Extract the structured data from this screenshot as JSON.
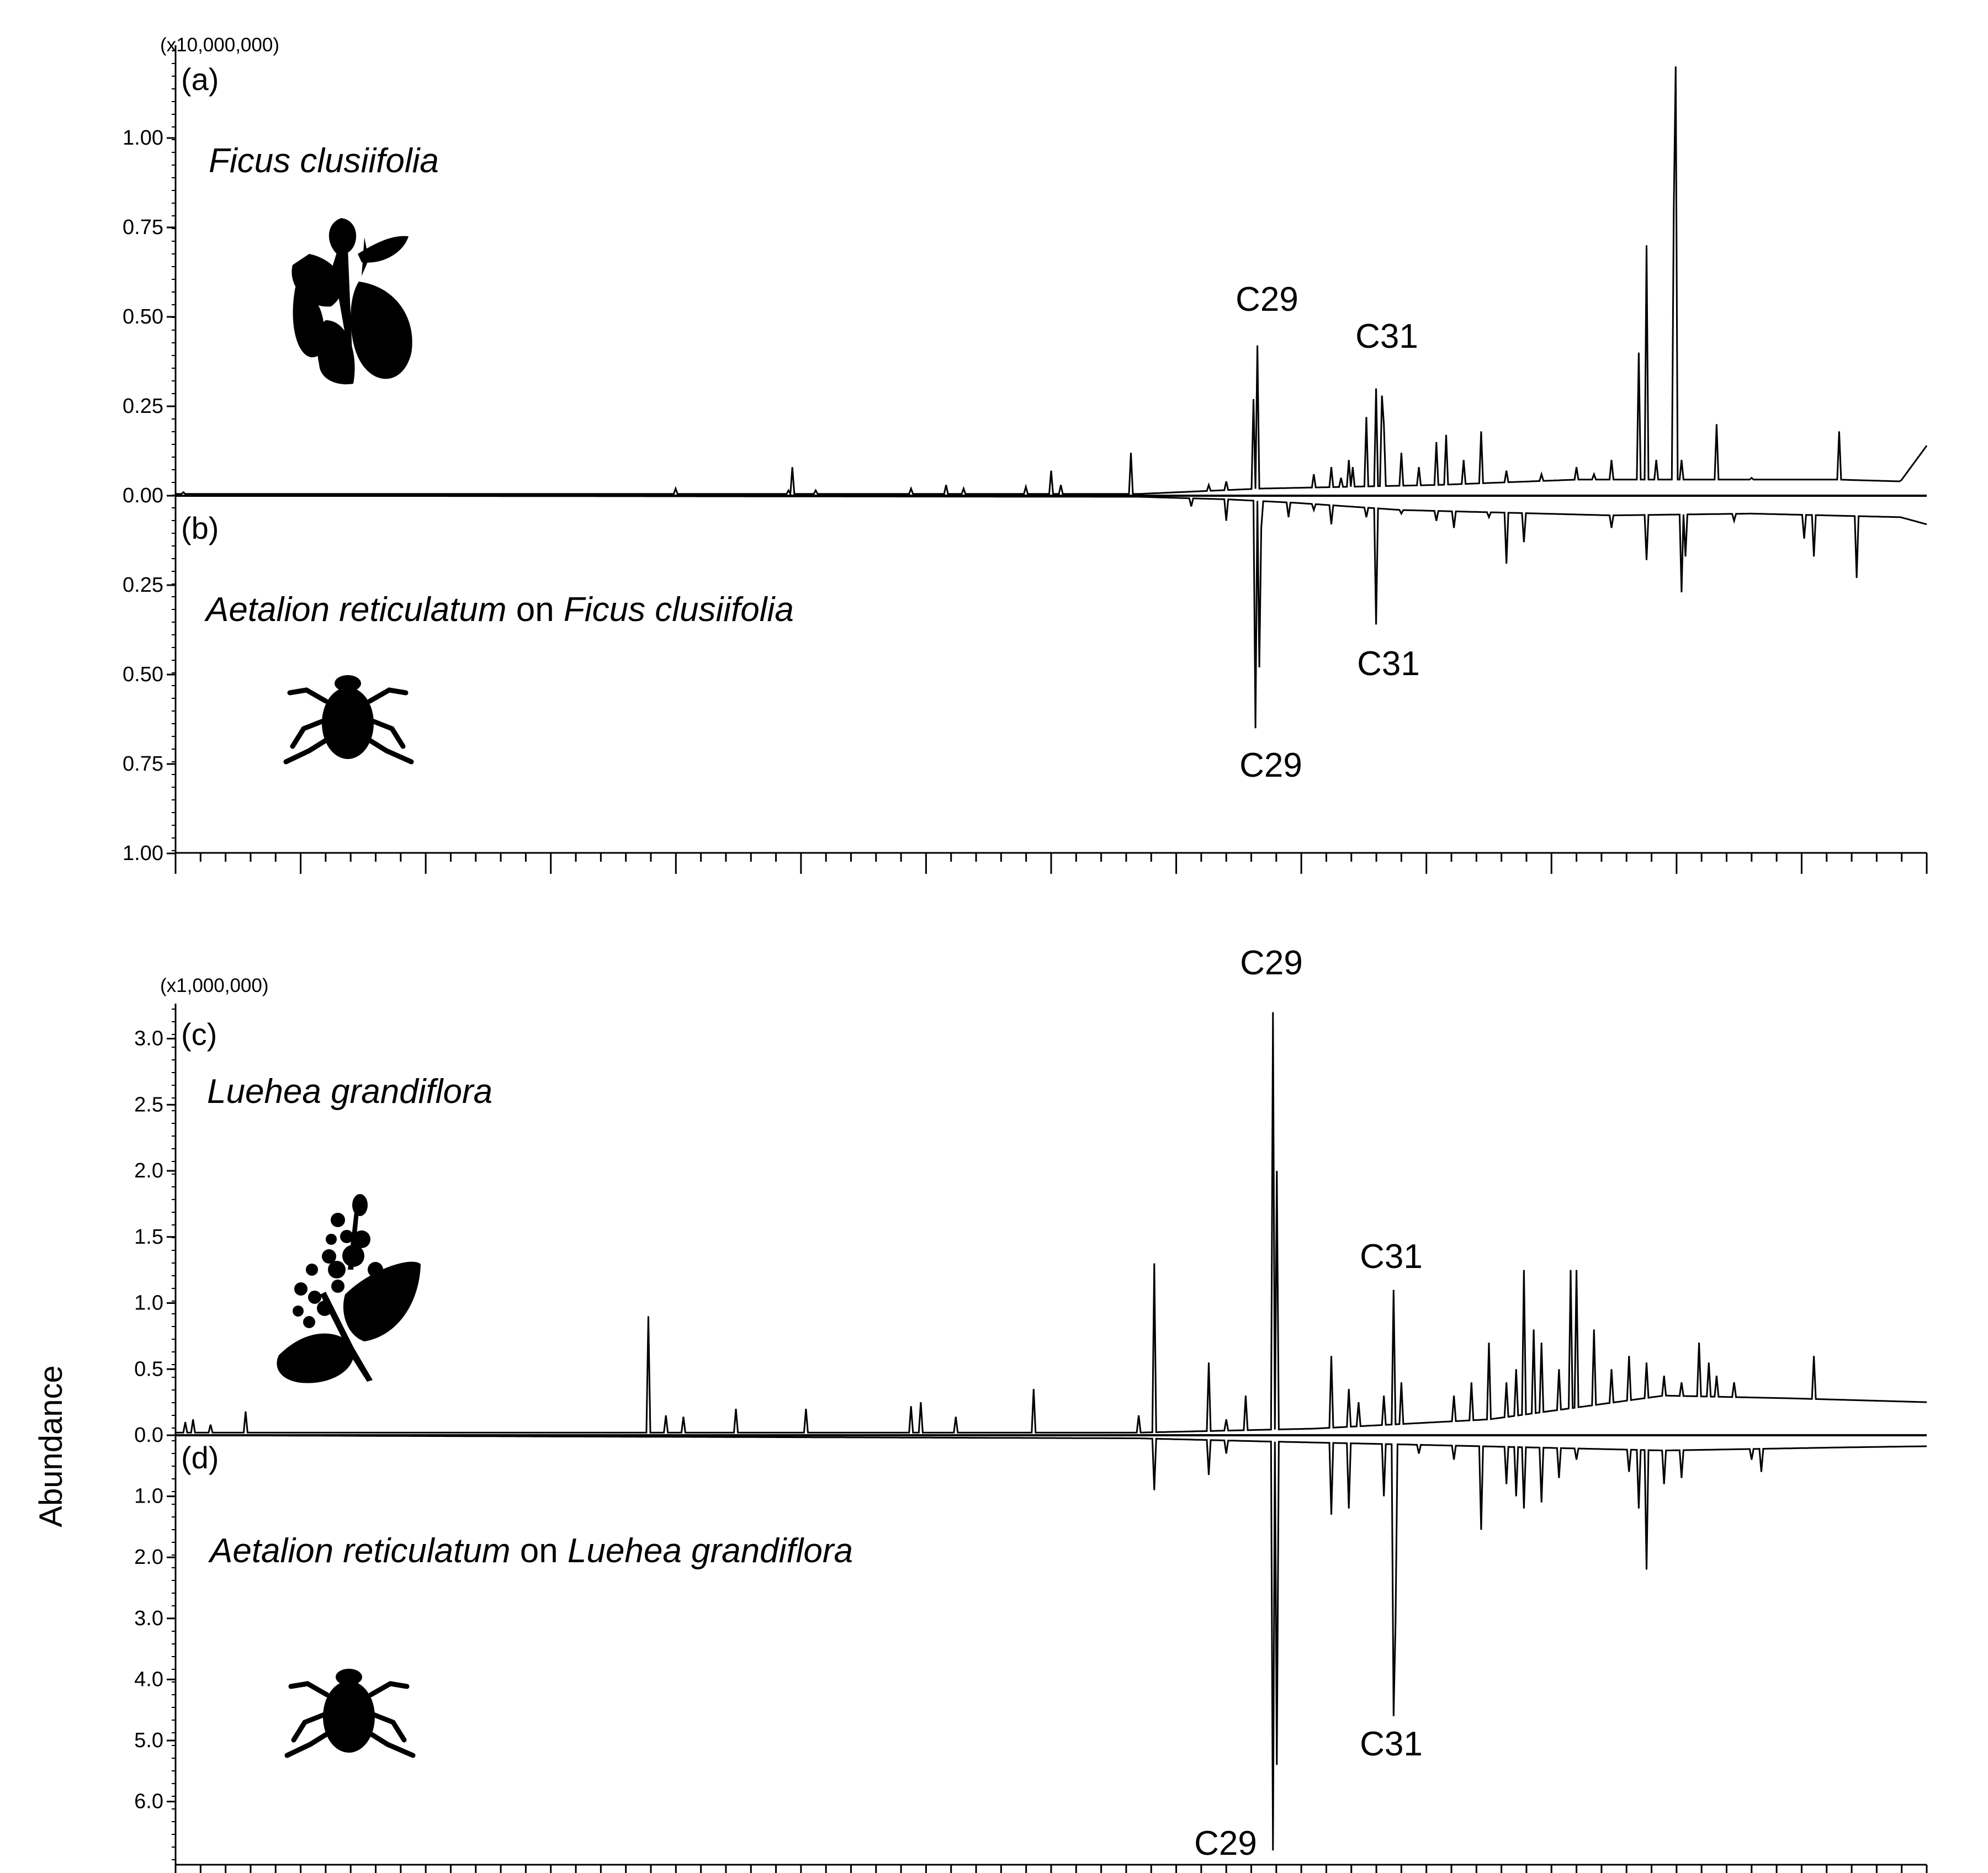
{
  "chart_data": [
    {
      "type": "line",
      "panels": [
        "(a)",
        "(b)"
      ],
      "scale_label": "(x10,000,000)",
      "x_tick_count": 70,
      "y_ticks_up": [
        "0.00",
        "0.25",
        "0.50",
        "0.75",
        "1.00"
      ],
      "y_ticks_down": [
        "0.25",
        "0.50",
        "0.75",
        "1.00"
      ],
      "ylim_up": [
        0,
        1.25
      ],
      "ylim_down": [
        0,
        1.0
      ],
      "series": [
        {
          "panel": "(a)",
          "label": "Ficus clusiifolia",
          "direction": "up",
          "baseline": [
            [
              0.0,
              0.005
            ],
            [
              0.55,
              0.005
            ],
            [
              0.62,
              0.02
            ],
            [
              0.72,
              0.03
            ],
            [
              0.8,
              0.045
            ],
            [
              0.95,
              0.045
            ],
            [
              0.985,
              0.04
            ],
            [
              1.0,
              0.14
            ]
          ],
          "peaks": [
            [
              0.004,
              0.01
            ],
            [
              0.285,
              0.02
            ],
            [
              0.35,
              0.015
            ],
            [
              0.352,
              0.08
            ],
            [
              0.365,
              0.015
            ],
            [
              0.42,
              0.02
            ],
            [
              0.44,
              0.03
            ],
            [
              0.45,
              0.02
            ],
            [
              0.485,
              0.025
            ],
            [
              0.5,
              0.07
            ],
            [
              0.505,
              0.03
            ],
            [
              0.545,
              0.12
            ],
            [
              0.59,
              0.03
            ],
            [
              0.6,
              0.04
            ],
            [
              0.618,
              0.42
            ],
            [
              0.616,
              0.27
            ],
            [
              0.65,
              0.06
            ],
            [
              0.66,
              0.08
            ],
            [
              0.665,
              0.05
            ],
            [
              0.67,
              0.1
            ],
            [
              0.672,
              0.08
            ],
            [
              0.68,
              0.22
            ],
            [
              0.69,
              0.06
            ],
            [
              0.69,
              0.2
            ],
            [
              0.685,
              0.3
            ],
            [
              0.689,
              0.28
            ],
            [
              0.7,
              0.12
            ],
            [
              0.71,
              0.08
            ],
            [
              0.72,
              0.15
            ],
            [
              0.725,
              0.17
            ],
            [
              0.735,
              0.1
            ],
            [
              0.745,
              0.18
            ],
            [
              0.76,
              0.07
            ],
            [
              0.78,
              0.06
            ],
            [
              0.8,
              0.08
            ],
            [
              0.81,
              0.06
            ],
            [
              0.82,
              0.1
            ],
            [
              0.835,
              0.4
            ],
            [
              0.84,
              0.7
            ],
            [
              0.845,
              0.1
            ],
            [
              0.855,
              0.8
            ],
            [
              0.857,
              1.2
            ],
            [
              0.86,
              0.1
            ],
            [
              0.88,
              0.2
            ],
            [
              0.9,
              0.05
            ],
            [
              0.95,
              0.18
            ]
          ]
        },
        {
          "panel": "(b)",
          "label": "Aetalion reticulatum on Ficus clusiifolia",
          "direction": "down",
          "baseline": [
            [
              0.0,
              0.0
            ],
            [
              0.55,
              0.003
            ],
            [
              0.6,
              0.01
            ],
            [
              0.64,
              0.02
            ],
            [
              0.7,
              0.04
            ],
            [
              0.82,
              0.055
            ],
            [
              0.9,
              0.05
            ],
            [
              0.985,
              0.06
            ],
            [
              1.0,
              0.08
            ]
          ],
          "peaks": [
            [
              0.58,
              0.03
            ],
            [
              0.6,
              0.07
            ],
            [
              0.617,
              0.65
            ],
            [
              0.619,
              0.48
            ],
            [
              0.62,
              0.09
            ],
            [
              0.635,
              0.06
            ],
            [
              0.65,
              0.04
            ],
            [
              0.66,
              0.08
            ],
            [
              0.685,
              0.36
            ],
            [
              0.68,
              0.06
            ],
            [
              0.7,
              0.05
            ],
            [
              0.72,
              0.07
            ],
            [
              0.73,
              0.09
            ],
            [
              0.75,
              0.06
            ],
            [
              0.76,
              0.19
            ],
            [
              0.77,
              0.13
            ],
            [
              0.8,
              0.05
            ],
            [
              0.82,
              0.09
            ],
            [
              0.84,
              0.18
            ],
            [
              0.86,
              0.27
            ],
            [
              0.862,
              0.17
            ],
            [
              0.89,
              0.07
            ],
            [
              0.93,
              0.12
            ],
            [
              0.935,
              0.17
            ],
            [
              0.96,
              0.23
            ]
          ]
        }
      ],
      "annotations": [
        {
          "panel": "(a)",
          "text": "C29"
        },
        {
          "panel": "(a)",
          "text": "C31"
        },
        {
          "panel": "(b)",
          "text": "C31"
        },
        {
          "panel": "(b)",
          "text": "C29"
        }
      ]
    },
    {
      "type": "line",
      "panels": [
        "(c)",
        "(d)"
      ],
      "scale_label": "(x1,000,000)",
      "x_tick_count": 70,
      "y_ticks_up": [
        "0.0",
        "0.5",
        "1.0",
        "1.5",
        "2.0",
        "2.5",
        "3.0"
      ],
      "y_ticks_down": [
        "1.0",
        "2.0",
        "3.0",
        "4.0",
        "5.0",
        "6.0"
      ],
      "ylim_up": [
        0,
        3.2
      ],
      "ylim_down": [
        0,
        7.0
      ],
      "series": [
        {
          "panel": "(c)",
          "label": "Luehea grandiflora",
          "direction": "up",
          "baseline": [
            [
              0.0,
              0.02
            ],
            [
              0.55,
              0.02
            ],
            [
              0.65,
              0.05
            ],
            [
              0.75,
              0.12
            ],
            [
              0.85,
              0.3
            ],
            [
              0.92,
              0.28
            ],
            [
              1.0,
              0.25
            ]
          ],
          "peaks": [
            [
              0.005,
              0.1
            ],
            [
              0.01,
              0.12
            ],
            [
              0.02,
              0.08
            ],
            [
              0.04,
              0.18
            ],
            [
              0.27,
              0.9
            ],
            [
              0.28,
              0.15
            ],
            [
              0.29,
              0.14
            ],
            [
              0.32,
              0.2
            ],
            [
              0.36,
              0.2
            ],
            [
              0.42,
              0.22
            ],
            [
              0.425,
              0.25
            ],
            [
              0.445,
              0.14
            ],
            [
              0.49,
              0.35
            ],
            [
              0.55,
              0.15
            ],
            [
              0.559,
              1.3
            ],
            [
              0.59,
              0.55
            ],
            [
              0.6,
              0.12
            ],
            [
              0.611,
              0.3
            ],
            [
              0.627,
              3.2
            ],
            [
              0.629,
              2.0
            ],
            [
              0.66,
              0.6
            ],
            [
              0.67,
              0.35
            ],
            [
              0.675,
              0.25
            ],
            [
              0.69,
              0.3
            ],
            [
              0.696,
              1.1
            ],
            [
              0.7,
              0.4
            ],
            [
              0.73,
              0.3
            ],
            [
              0.74,
              0.4
            ],
            [
              0.75,
              0.7
            ],
            [
              0.76,
              0.4
            ],
            [
              0.765,
              0.5
            ],
            [
              0.77,
              1.25
            ],
            [
              0.775,
              0.8
            ],
            [
              0.78,
              0.7
            ],
            [
              0.79,
              0.5
            ],
            [
              0.797,
              1.25
            ],
            [
              0.8,
              1.25
            ],
            [
              0.81,
              0.8
            ],
            [
              0.82,
              0.5
            ],
            [
              0.83,
              0.6
            ],
            [
              0.84,
              0.55
            ],
            [
              0.85,
              0.45
            ],
            [
              0.86,
              0.4
            ],
            [
              0.87,
              0.7
            ],
            [
              0.875,
              0.55
            ],
            [
              0.88,
              0.45
            ],
            [
              0.89,
              0.4
            ],
            [
              0.935,
              0.6
            ]
          ]
        },
        {
          "panel": "(d)",
          "label": "Aetalion reticulatum on Luehea grandiflora",
          "direction": "down",
          "baseline": [
            [
              0.0,
              0.0
            ],
            [
              0.55,
              0.05
            ],
            [
              0.62,
              0.1
            ],
            [
              0.7,
              0.15
            ],
            [
              0.85,
              0.25
            ],
            [
              0.95,
              0.2
            ],
            [
              1.0,
              0.18
            ]
          ],
          "peaks": [
            [
              0.559,
              0.9
            ],
            [
              0.59,
              0.65
            ],
            [
              0.6,
              0.3
            ],
            [
              0.627,
              6.8
            ],
            [
              0.629,
              5.4
            ],
            [
              0.66,
              1.3
            ],
            [
              0.67,
              1.2
            ],
            [
              0.69,
              1.0
            ],
            [
              0.696,
              4.6
            ],
            [
              0.697,
              3.1
            ],
            [
              0.71,
              0.3
            ],
            [
              0.73,
              0.4
            ],
            [
              0.745,
              1.55
            ],
            [
              0.76,
              0.8
            ],
            [
              0.765,
              1.0
            ],
            [
              0.77,
              1.2
            ],
            [
              0.78,
              1.1
            ],
            [
              0.79,
              0.7
            ],
            [
              0.8,
              0.4
            ],
            [
              0.83,
              0.6
            ],
            [
              0.835,
              1.2
            ],
            [
              0.84,
              2.2
            ],
            [
              0.85,
              0.8
            ],
            [
              0.86,
              0.7
            ],
            [
              0.9,
              0.4
            ],
            [
              0.905,
              0.6
            ]
          ]
        }
      ],
      "annotations": [
        {
          "panel": "(c)",
          "text": "C29"
        },
        {
          "panel": "(c)",
          "text": "C31"
        },
        {
          "panel": "(d)",
          "text": "C31"
        },
        {
          "panel": "(d)",
          "text": "C29"
        }
      ]
    }
  ],
  "ylabel": "Abundance",
  "species_parts": {
    "a": [
      "Ficus clusiifolia"
    ],
    "b": [
      "Aetalion reticulatum",
      " on ",
      "Ficus clusiifolia"
    ],
    "c": [
      "Luehea grandiflora"
    ],
    "d": [
      "Aetalion reticulatum",
      " on ",
      "Luehea grandiflora"
    ]
  },
  "icons": [
    "plant-icon",
    "beetle-icon",
    "flower-plant-icon",
    "beetle-icon"
  ],
  "colors": {
    "line": "#000000",
    "background": "#ffffff"
  }
}
